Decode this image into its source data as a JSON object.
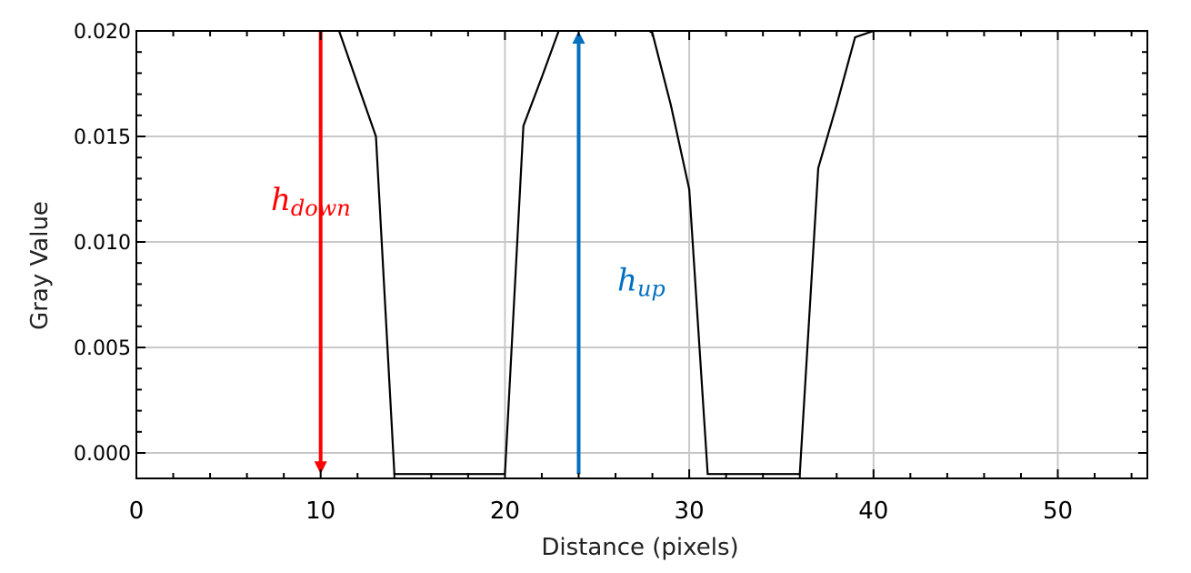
{
  "chart_data": {
    "type": "line",
    "title": "",
    "xlabel": "Distance (pixels)",
    "ylabel": "Gray Value",
    "xlim": [
      0,
      55
    ],
    "ylim": [
      -0.001,
      0.02
    ],
    "x_ticks": [
      0,
      10,
      20,
      30,
      40,
      50
    ],
    "x_tick_labels": [
      "0",
      "10",
      "20",
      "30",
      "40",
      "50"
    ],
    "y_ticks": [
      0.0,
      0.005,
      0.01,
      0.015,
      0.02
    ],
    "y_tick_labels": [
      "0.000",
      "0.005",
      "0.010",
      "0.015",
      "0.020"
    ],
    "grid": true,
    "line_color": "#000000",
    "series": [
      {
        "x": [
          10,
          11,
          12,
          13,
          14,
          15,
          16,
          17,
          18,
          19,
          20,
          21,
          22,
          23,
          24,
          25,
          26,
          27,
          28,
          29,
          30,
          31,
          32,
          33,
          34,
          35,
          36,
          37,
          38,
          39,
          40,
          41,
          42,
          43,
          44,
          45,
          46,
          47,
          48,
          49,
          50,
          51,
          52,
          53,
          54,
          55
        ],
        "y": [
          0.0205,
          0.02,
          0.0175,
          0.015,
          -0.001,
          -0.001,
          -0.001,
          -0.001,
          -0.001,
          -0.001,
          -0.001,
          0.0155,
          0.0178,
          0.0202,
          0.0208,
          0.0208,
          0.0208,
          0.0205,
          0.0199,
          0.0165,
          0.0125,
          -0.001,
          -0.001,
          -0.001,
          -0.001,
          -0.001,
          -0.001,
          0.0135,
          0.0165,
          0.0197,
          0.02,
          0.02,
          0.02,
          0.02,
          0.02,
          0.02,
          0.02,
          0.02,
          0.02,
          0.02,
          0.02,
          0.02,
          0.02,
          0.02,
          0.02,
          0.02
        ]
      }
    ],
    "annotations": [
      {
        "kind": "arrow",
        "direction": "down",
        "x": 10,
        "y_from": 0.02,
        "y_to": -0.001,
        "color": "#ff0000",
        "label_base": "h",
        "label_sub": "down",
        "label_x": 7.3,
        "label_y": 0.0115
      },
      {
        "kind": "arrow",
        "direction": "up",
        "x": 24,
        "y_from": -0.001,
        "y_to": 0.02,
        "color": "#0070c0",
        "label_base": "h",
        "label_sub": "up",
        "label_x": 26.1,
        "label_y": 0.0077
      }
    ]
  }
}
